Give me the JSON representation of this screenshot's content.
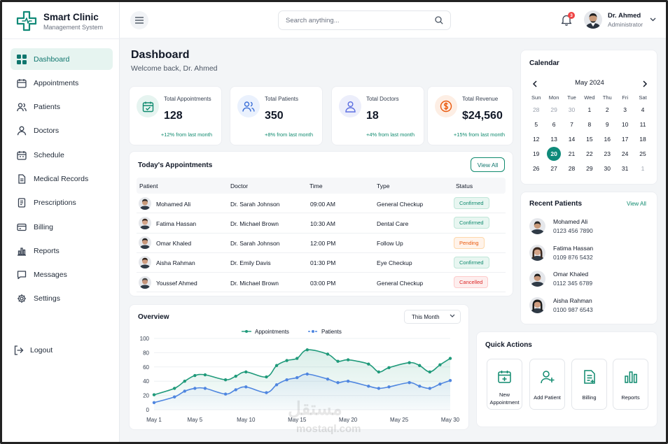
{
  "brand": {
    "title": "Smart Clinic",
    "subtitle": "Management System"
  },
  "sidebar": {
    "items": [
      {
        "label": "Dashboard",
        "icon": "grid-icon",
        "active": true
      },
      {
        "label": "Appointments",
        "icon": "calendar-icon"
      },
      {
        "label": "Patients",
        "icon": "users-icon"
      },
      {
        "label": "Doctors",
        "icon": "doctor-icon"
      },
      {
        "label": "Schedule",
        "icon": "schedule-icon"
      },
      {
        "label": "Medical Records",
        "icon": "file-icon"
      },
      {
        "label": "Prescriptions",
        "icon": "prescription-icon"
      },
      {
        "label": "Billing",
        "icon": "credit-card-icon"
      },
      {
        "label": "Reports",
        "icon": "bar-chart-icon"
      },
      {
        "label": "Messages",
        "icon": "message-icon"
      },
      {
        "label": "Settings",
        "icon": "gear-icon"
      }
    ],
    "logout": "Logout"
  },
  "topbar": {
    "search_placeholder": "Search anything...",
    "notification_count": "3",
    "user_name": "Dr. Ahmed",
    "user_role": "Administrator"
  },
  "page": {
    "title": "Dashboard",
    "subtitle": "Welcome back, Dr. Ahmed"
  },
  "stats": [
    {
      "label": "Total Appointments",
      "value": "128",
      "delta": "+12% from last month",
      "color": "#0f8a6e"
    },
    {
      "label": "Total Patients",
      "value": "350",
      "delta": "+8% from last month",
      "color": "#3b6fd8"
    },
    {
      "label": "Total Doctors",
      "value": "18",
      "delta": "+4% from last month",
      "color": "#5b6ee1"
    },
    {
      "label": "Total Revenue",
      "value": "$24,560",
      "delta": "+15% from last month",
      "color": "#ea580c"
    }
  ],
  "appointments": {
    "title": "Today's Appointments",
    "view_all": "View All",
    "columns": [
      "Patient",
      "Doctor",
      "Time",
      "Type",
      "Status"
    ],
    "rows": [
      {
        "patient": "Mohamed Ali",
        "doctor": "Dr. Sarah Johnson",
        "time": "09:00 AM",
        "type": "General Checkup",
        "status": "Confirmed",
        "status_kind": "confirmed"
      },
      {
        "patient": "Fatima Hassan",
        "doctor": "Dr. Michael Brown",
        "time": "10:30 AM",
        "type": "Dental Care",
        "status": "Confirmed",
        "status_kind": "confirmed"
      },
      {
        "patient": "Omar Khaled",
        "doctor": "Dr. Sarah Johnson",
        "time": "12:00 PM",
        "type": "Follow Up",
        "status": "Pending",
        "status_kind": "pending"
      },
      {
        "patient": "Aisha Rahman",
        "doctor": "Dr. Emily Davis",
        "time": "01:30 PM",
        "type": "Eye Checkup",
        "status": "Confirmed",
        "status_kind": "confirmed"
      },
      {
        "patient": "Youssef Ahmed",
        "doctor": "Dr. Michael Brown",
        "time": "03:00 PM",
        "type": "General Checkup",
        "status": "Cancelled",
        "status_kind": "cancelled"
      }
    ]
  },
  "overview": {
    "title": "Overview",
    "period": "This Month"
  },
  "chart_data": {
    "type": "line",
    "title": "",
    "xlabel": "",
    "ylabel": "",
    "ylim": [
      0,
      100
    ],
    "yticks": [
      0,
      20,
      40,
      60,
      80,
      100
    ],
    "xticks": [
      "May 1",
      "May 5",
      "May 10",
      "May 15",
      "May 20",
      "May 25",
      "May 30"
    ],
    "xticks_day": [
      1,
      5,
      10,
      15,
      20,
      25,
      30
    ],
    "x": [
      1,
      2,
      3,
      4,
      5,
      6,
      7,
      8,
      9,
      10,
      11,
      12,
      13,
      14,
      15,
      16,
      17,
      18,
      19,
      20,
      21,
      22,
      23,
      24,
      25,
      26,
      27,
      28,
      29,
      30
    ],
    "x_all": [
      1,
      2,
      3,
      4,
      5,
      6,
      7,
      8,
      9,
      10,
      11,
      12,
      13,
      14,
      15,
      16,
      17,
      18,
      19,
      20,
      21,
      22,
      23,
      24,
      25,
      26,
      27,
      28,
      29,
      30
    ],
    "grid": true,
    "legend": "top-center",
    "series": [
      {
        "name": "Appointments",
        "color": "#1f9a7a",
        "x": [
          1,
          3,
          4,
          5,
          6,
          8,
          9,
          10,
          12,
          13,
          14,
          15,
          16,
          18,
          19,
          20,
          22,
          23,
          24,
          26,
          27,
          28,
          29,
          30
        ],
        "values": [
          21,
          30,
          40,
          48,
          49,
          42,
          47,
          53,
          46,
          62,
          69,
          72,
          84,
          78,
          68,
          70,
          64,
          53,
          59,
          66,
          62,
          53,
          63,
          72
        ]
      },
      {
        "name": "Patients",
        "color": "#4f86e0",
        "x": [
          1,
          3,
          4,
          5,
          6,
          8,
          9,
          10,
          12,
          13,
          14,
          15,
          16,
          18,
          19,
          20,
          22,
          23,
          24,
          26,
          27,
          28,
          29,
          30
        ],
        "values": [
          10,
          18,
          26,
          30,
          30,
          22,
          28,
          32,
          24,
          35,
          42,
          45,
          50,
          43,
          38,
          40,
          33,
          30,
          32,
          38,
          33,
          30,
          36,
          41
        ]
      }
    ]
  },
  "calendar": {
    "title": "Calendar",
    "month": "May 2024",
    "weekdays": [
      "Sun",
      "Mon",
      "Tue",
      "Wed",
      "Thu",
      "Fri",
      "Sat"
    ],
    "weeks": [
      [
        {
          "d": "28",
          "m": true
        },
        {
          "d": "29",
          "m": true
        },
        {
          "d": "30",
          "m": true
        },
        {
          "d": "1"
        },
        {
          "d": "2"
        },
        {
          "d": "3"
        },
        {
          "d": "4"
        }
      ],
      [
        {
          "d": "5"
        },
        {
          "d": "6"
        },
        {
          "d": "7"
        },
        {
          "d": "8"
        },
        {
          "d": "9"
        },
        {
          "d": "10"
        },
        {
          "d": "11"
        }
      ],
      [
        {
          "d": "12"
        },
        {
          "d": "13"
        },
        {
          "d": "14"
        },
        {
          "d": "15"
        },
        {
          "d": "16"
        },
        {
          "d": "17"
        },
        {
          "d": "18"
        }
      ],
      [
        {
          "d": "19"
        },
        {
          "d": "20",
          "t": true
        },
        {
          "d": "21"
        },
        {
          "d": "22"
        },
        {
          "d": "23"
        },
        {
          "d": "24"
        },
        {
          "d": "25"
        }
      ],
      [
        {
          "d": "26"
        },
        {
          "d": "27"
        },
        {
          "d": "28"
        },
        {
          "d": "29"
        },
        {
          "d": "30"
        },
        {
          "d": "31"
        },
        {
          "d": "1",
          "m": true
        }
      ]
    ]
  },
  "recent_patients": {
    "title": "Recent Patients",
    "view_all": "View All",
    "items": [
      {
        "name": "Mohamed Ali",
        "phone": "0123 456 7890"
      },
      {
        "name": "Fatima Hassan",
        "phone": "0109 876 5432"
      },
      {
        "name": "Omar Khaled",
        "phone": "0112 345 6789"
      },
      {
        "name": "Aisha Rahman",
        "phone": "0100 987 6543"
      }
    ]
  },
  "quick_actions": {
    "title": "Quick Actions",
    "items": [
      {
        "label": "New Appointment",
        "icon": "calendar-plus-icon"
      },
      {
        "label": "Add Patient",
        "icon": "user-plus-icon"
      },
      {
        "label": "Billing",
        "icon": "invoice-icon"
      },
      {
        "label": "Reports",
        "icon": "bar-chart-icon"
      }
    ]
  },
  "watermark": {
    "arabic": "مستقل",
    "latin": "mostaql.com"
  }
}
